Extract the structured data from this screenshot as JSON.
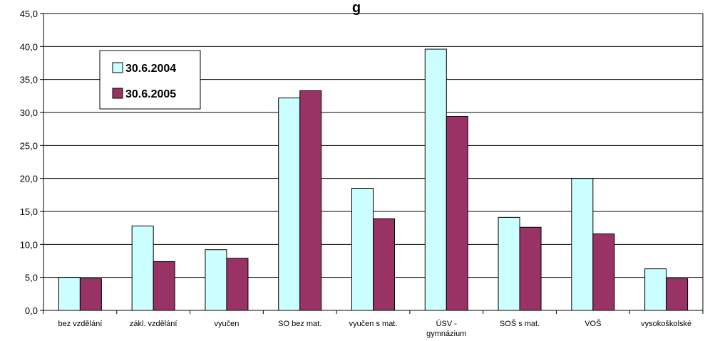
{
  "chart_data": {
    "type": "bar",
    "title": "g",
    "categories": [
      "bez vzdělání",
      "zákl. vzdělání",
      "vyučen",
      "SO bez mat.",
      "vyučen s mat.",
      "ÚSV - gymnázium",
      "SOŠ s mat.",
      "VOŠ",
      "vysokoškolské"
    ],
    "series": [
      {
        "name": "30.6.2004",
        "color": "#ccffff",
        "values": [
          5.0,
          12.8,
          9.2,
          32.2,
          18.5,
          39.6,
          14.1,
          20.0,
          6.3
        ]
      },
      {
        "name": "30.6.2005",
        "color": "#993366",
        "values": [
          4.8,
          7.4,
          7.9,
          33.3,
          13.9,
          29.4,
          12.6,
          11.6,
          4.8
        ]
      }
    ],
    "yticks": [
      "0,0",
      "5,0",
      "10,0",
      "15,0",
      "20,0",
      "25,0",
      "30,0",
      "35,0",
      "40,0",
      "45,0"
    ],
    "ylim": [
      0,
      45
    ],
    "ystep": 5,
    "grid": true,
    "legend_position": "top-left"
  }
}
